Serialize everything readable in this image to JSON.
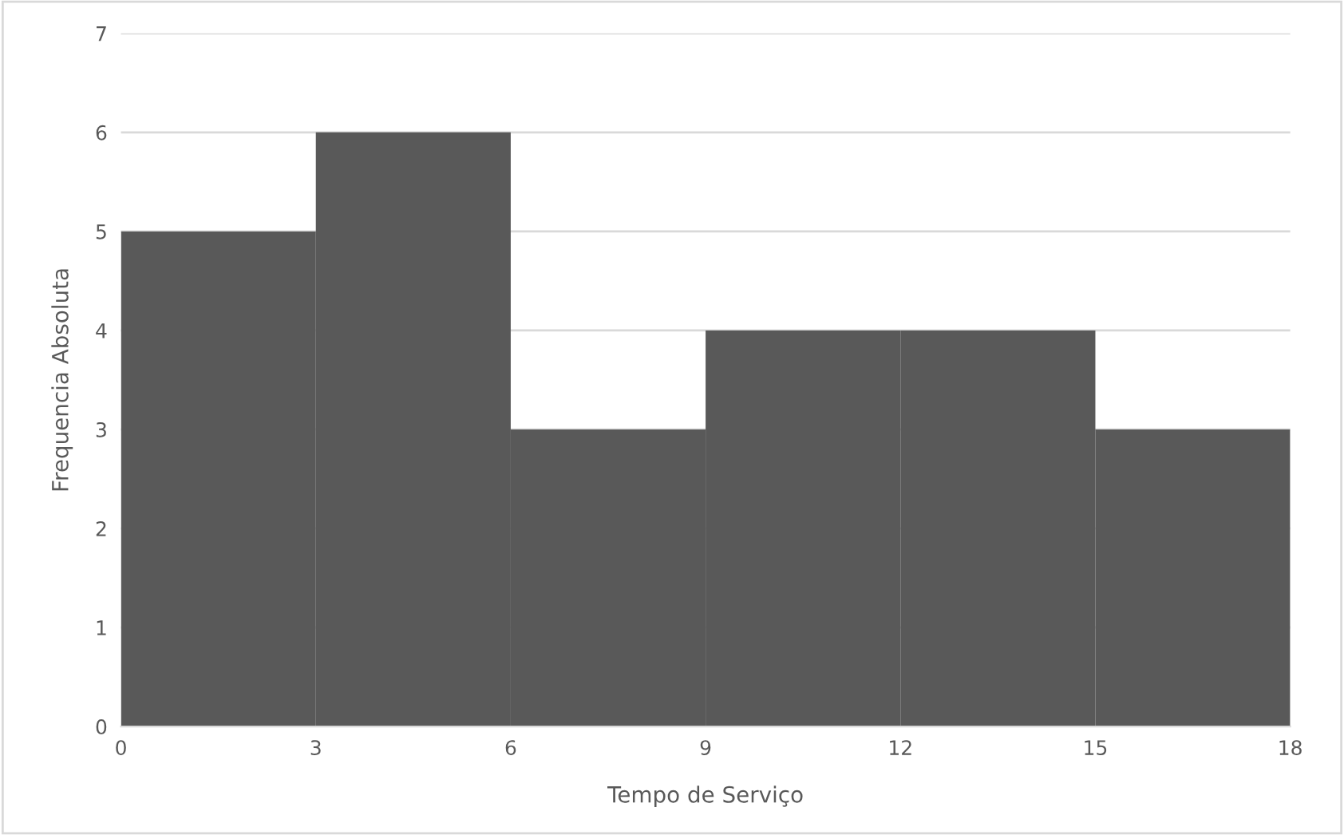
{
  "chart_data": {
    "type": "histogram",
    "xlabel": "Tempo de Serviço",
    "ylabel": "Frequencia Absoluta",
    "bins": [
      0,
      3,
      6,
      9,
      12,
      15,
      18
    ],
    "values": [
      5,
      6,
      3,
      4,
      4,
      3
    ],
    "color": "#595959",
    "xlim": [
      0,
      18
    ],
    "xticks": [
      0,
      3,
      6,
      9,
      12,
      15,
      18
    ],
    "ylim": [
      0,
      7
    ],
    "yticks": [
      0,
      1,
      2,
      3,
      4,
      5,
      6,
      7
    ],
    "grid": "y"
  }
}
